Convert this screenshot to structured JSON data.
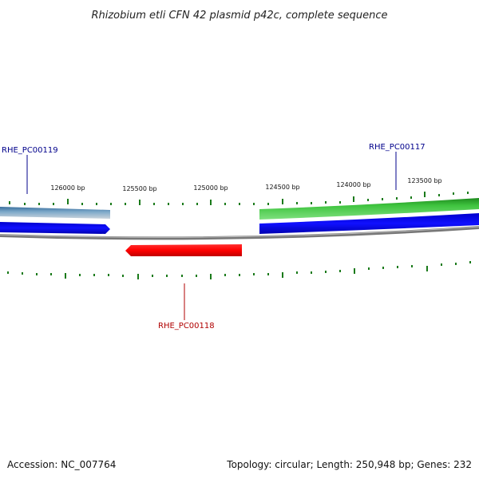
{
  "title": "Rhizobium etli CFN 42 plasmid p42c, complete sequence",
  "footer": {
    "accession": "Accession: NC_007764",
    "summary": "Topology: circular; Length: 250,948 bp; Genes: 232"
  },
  "ruler": {
    "labels": [
      "126000 bp",
      "125500 bp",
      "125000 bp",
      "124500 bp",
      "124000 bp",
      "123500 bp"
    ]
  },
  "genes": [
    {
      "id": "RHE_PC00119",
      "strand": "forward",
      "color": "#4a7fb0"
    },
    {
      "id": "RHE_PC00117",
      "strand": "forward",
      "color": "#2da52d"
    },
    {
      "id": "RHE_PC00118",
      "strand": "reverse",
      "color": "#e00000"
    }
  ],
  "colors": {
    "cds_forward": "#0000ee",
    "backbone": "#777777",
    "ticks": "#1a7a1a",
    "label_blue": "#00008b",
    "label_red": "#b00000"
  }
}
